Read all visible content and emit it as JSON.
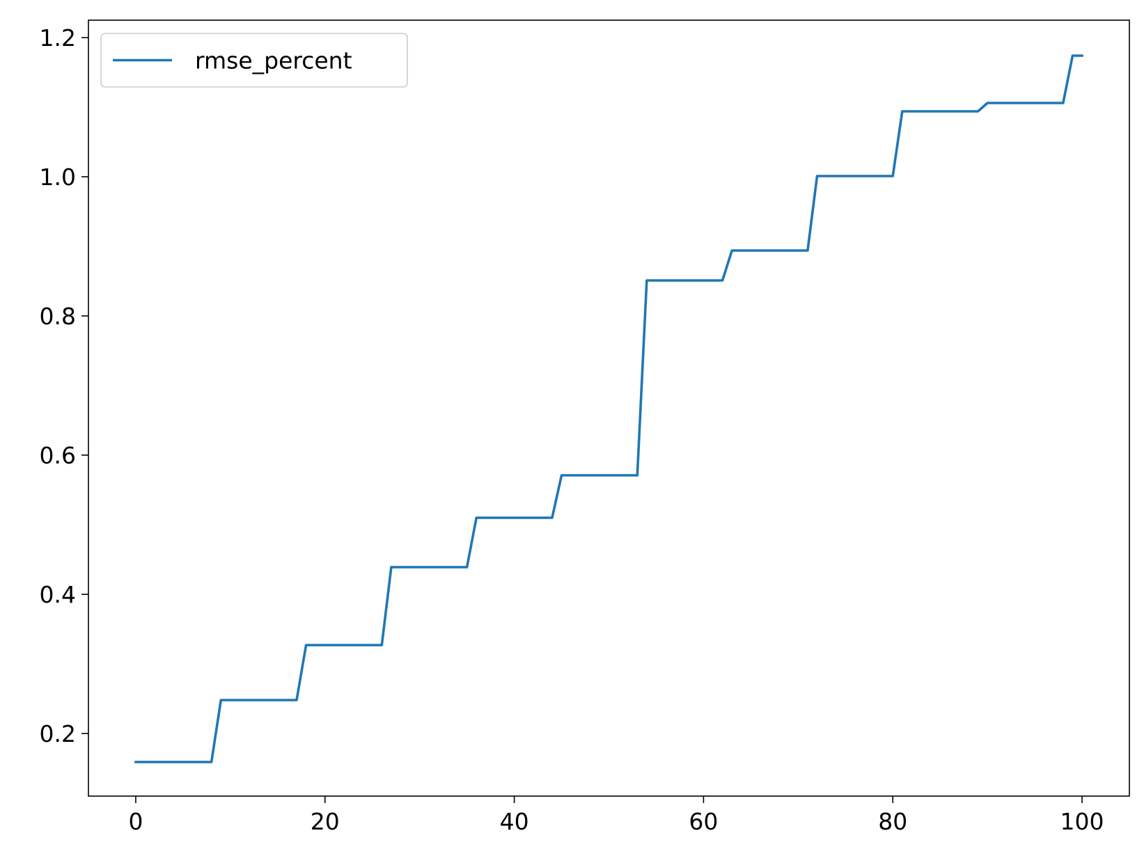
{
  "chart_data": {
    "type": "line",
    "title": "",
    "xlabel": "",
    "ylabel": "",
    "xlim": [
      -5,
      105
    ],
    "ylim": [
      0.11,
      1.225
    ],
    "xticks": [
      0,
      20,
      40,
      60,
      80,
      100
    ],
    "xtick_labels": [
      "0",
      "20",
      "40",
      "60",
      "80",
      "100"
    ],
    "yticks": [
      0.2,
      0.4,
      0.6,
      0.8,
      1.0,
      1.2
    ],
    "ytick_labels": [
      "0.2",
      "0.4",
      "0.6",
      "0.8",
      "1.0",
      "1.2"
    ],
    "grid": false,
    "legend": {
      "position": "upper-left",
      "entries": [
        "rmse_percent"
      ]
    },
    "series": [
      {
        "name": "rmse_percent",
        "color": "#1f77b4",
        "steps": [
          {
            "from": 0,
            "to": 8,
            "value": 0.159
          },
          {
            "from": 9,
            "to": 17,
            "value": 0.248
          },
          {
            "from": 18,
            "to": 26,
            "value": 0.327
          },
          {
            "from": 27,
            "to": 35,
            "value": 0.439
          },
          {
            "from": 36,
            "to": 44,
            "value": 0.51
          },
          {
            "from": 45,
            "to": 53,
            "value": 0.571
          },
          {
            "from": 54,
            "to": 62,
            "value": 0.851
          },
          {
            "from": 63,
            "to": 71,
            "value": 0.894
          },
          {
            "from": 72,
            "to": 80,
            "value": 1.001
          },
          {
            "from": 81,
            "to": 89,
            "value": 1.094
          },
          {
            "from": 90,
            "to": 98,
            "value": 1.106
          },
          {
            "from": 99,
            "to": 100,
            "value": 1.174
          }
        ]
      }
    ]
  }
}
